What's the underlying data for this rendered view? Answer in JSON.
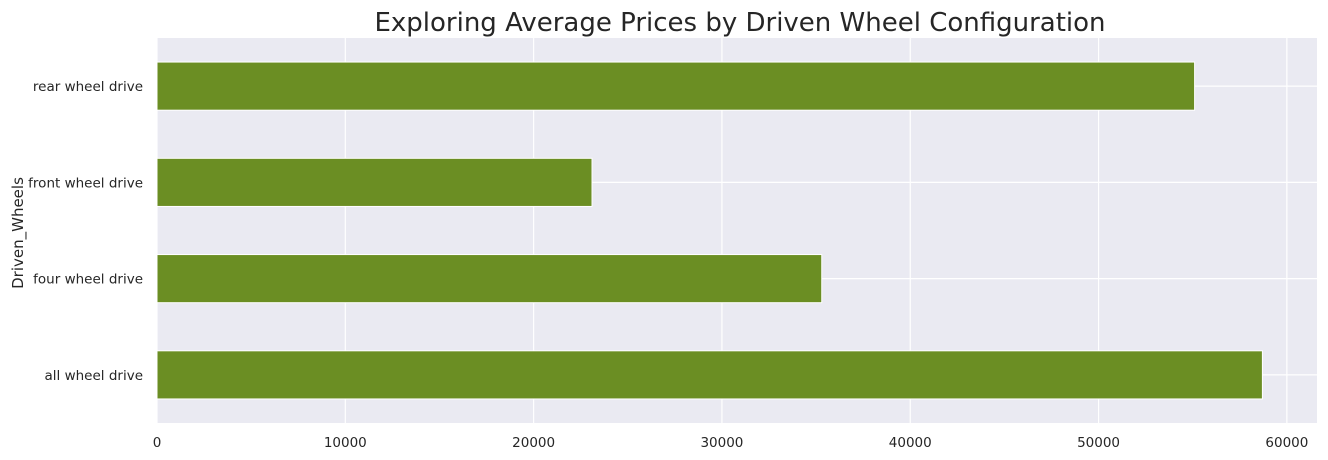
{
  "chart_data": {
    "type": "bar",
    "orientation": "horizontal",
    "title": "Exploring Average Prices by Driven Wheel Configuration",
    "xlabel": "",
    "ylabel": "Driven_Wheels",
    "categories": [
      "rear wheel drive",
      "front wheel drive",
      "four wheel drive",
      "all wheel drive"
    ],
    "values": [
      55100,
      23100,
      35300,
      58700
    ],
    "x_ticks": [
      0,
      10000,
      20000,
      30000,
      40000,
      50000,
      60000
    ],
    "x_tick_labels": [
      "0",
      "10000",
      "20000",
      "30000",
      "40000",
      "50000",
      "60000"
    ],
    "xlim": [
      0,
      61600
    ],
    "grid": true,
    "legend": "none",
    "colors": {
      "bar": "#6b8e23",
      "plot_background": "#eaeaf2",
      "grid": "#ffffff",
      "text": "#262626"
    }
  }
}
